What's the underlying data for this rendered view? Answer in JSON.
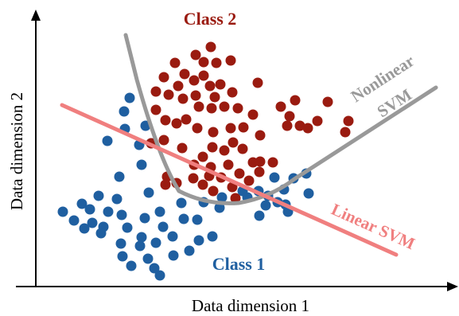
{
  "axes": {
    "x_label": "Data dimension 1",
    "y_label": "Data dimension 2"
  },
  "classes": [
    {
      "name": "Class 1",
      "color": "#1f5fa0"
    },
    {
      "name": "Class 2",
      "color": "#9a1b10"
    }
  ],
  "boundaries": [
    {
      "name": "Linear SVM",
      "color": "#f07f7f"
    },
    {
      "name_line1": "Nonlinear",
      "name_line2": "SVM",
      "color": "#999999"
    }
  ]
}
